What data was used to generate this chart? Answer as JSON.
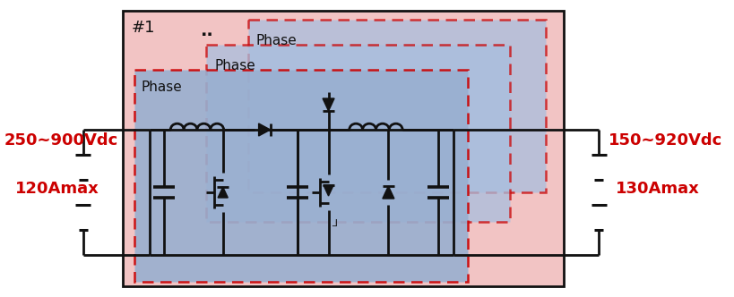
{
  "fig_width": 8.2,
  "fig_height": 3.32,
  "label_hash": "#1",
  "left_voltage": "250~900Vdc",
  "left_current": "120Amax",
  "right_voltage": "150~920Vdc",
  "right_current": "130Amax",
  "red_color": "#cc0000",
  "black_color": "#111111",
  "phase_label": "Phase",
  "outer_fill": "#f2c4c4",
  "phase_fill": "#98afd0",
  "phase_fill2": "#a8bede"
}
